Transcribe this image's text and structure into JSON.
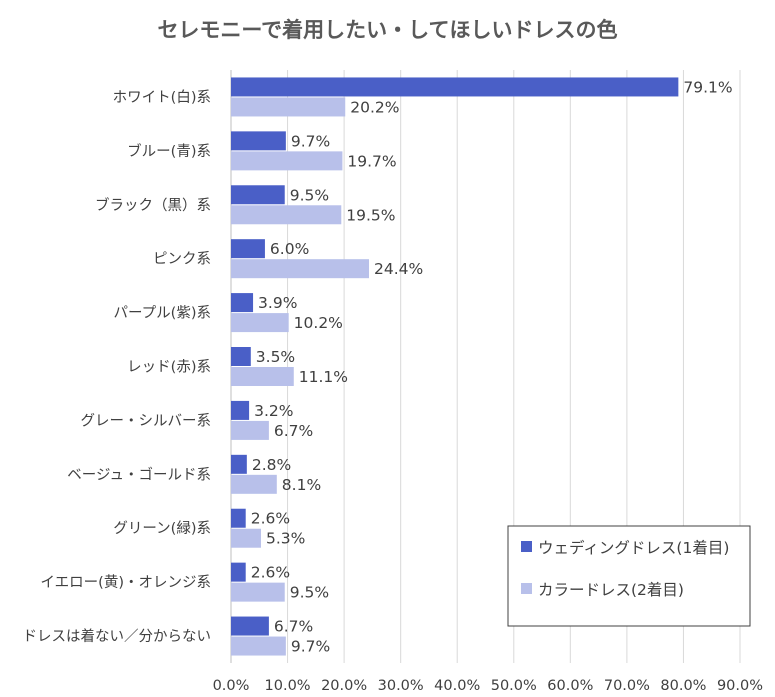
{
  "chart_data": {
    "type": "bar",
    "orientation": "horizontal",
    "title": "セレモニーで着用したい・してほしいドレスの色",
    "categories": [
      "ホワイト(白)系",
      "ブルー(青)系",
      "ブラック（黒）系",
      "ピンク系",
      "パープル(紫)系",
      "レッド(赤)系",
      "グレー・シルバー系",
      "ベージュ・ゴールド系",
      "グリーン(緑)系",
      "イエロー(黄)・オレンジ系",
      "ドレスは着ない／分からない"
    ],
    "series": [
      {
        "name": "ウェディングドレス(1着目)",
        "color": "#4a5fc7",
        "values": [
          79.1,
          9.7,
          9.5,
          6.0,
          3.9,
          3.5,
          3.2,
          2.8,
          2.6,
          2.6,
          6.7
        ],
        "labels": [
          "79.1%",
          "9.7%",
          "9.5%",
          "6.0%",
          "3.9%",
          "3.5%",
          "3.2%",
          "2.8%",
          "2.6%",
          "2.6%",
          "6.7%"
        ]
      },
      {
        "name": "カラードレス(2着目)",
        "color": "#b8c0ea",
        "values": [
          20.2,
          19.7,
          19.5,
          24.4,
          10.2,
          11.1,
          6.7,
          8.1,
          5.3,
          9.5,
          9.7
        ],
        "labels": [
          "20.2%",
          "19.7%",
          "19.5%",
          "24.4%",
          "10.2%",
          "11.1%",
          "6.7%",
          "8.1%",
          "5.3%",
          "9.5%",
          "9.7%"
        ]
      }
    ],
    "xlim": [
      0,
      90
    ],
    "xticks": [
      "0.0%",
      "10.0%",
      "20.0%",
      "30.0%",
      "40.0%",
      "50.0%",
      "60.0%",
      "70.0%",
      "80.0%",
      "90.0%"
    ],
    "xlabel": "",
    "ylabel": "",
    "grid": "vertical",
    "legend_position": "bottom-right"
  }
}
